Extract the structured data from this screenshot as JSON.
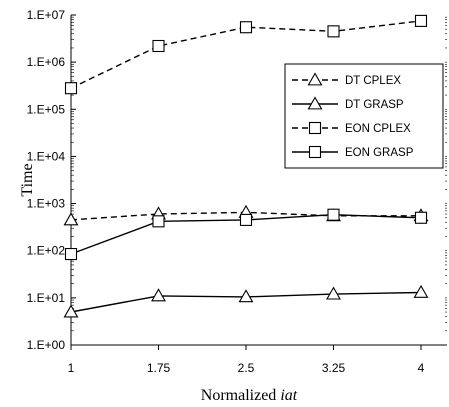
{
  "chart_data": {
    "type": "line",
    "x": [
      1,
      1.75,
      2.5,
      3.25,
      4
    ],
    "xtick_labels": [
      "1",
      "1.75",
      "2.5",
      "3.25",
      "4"
    ],
    "ytick_labels": [
      "1.E+00",
      "1.E+01",
      "1.E+02",
      "1.E+03",
      "1.E+04",
      "1.E+05",
      "1.E+06",
      "1.E+07"
    ],
    "ylim": [
      1,
      10000000
    ],
    "yscale": "log",
    "xlabel": "Normalized ",
    "xlabel_italic": "iat",
    "ylabel": "Time",
    "legend_position": "right",
    "grid": false,
    "series": [
      {
        "name": "DT CPLEX",
        "marker": "triangle",
        "dash": "dashed",
        "values": [
          450,
          600,
          650,
          550,
          550
        ]
      },
      {
        "name": "DT GRASP",
        "marker": "triangle",
        "dash": "solid",
        "values": [
          5,
          11,
          10.5,
          12,
          13
        ]
      },
      {
        "name": "EON CPLEX",
        "marker": "square",
        "dash": "dashed",
        "values": [
          280000,
          2200000,
          5500000,
          4500000,
          7500000
        ]
      },
      {
        "name": "EON GRASP",
        "marker": "square",
        "dash": "solid",
        "values": [
          85,
          420,
          450,
          580,
          500
        ]
      }
    ]
  }
}
